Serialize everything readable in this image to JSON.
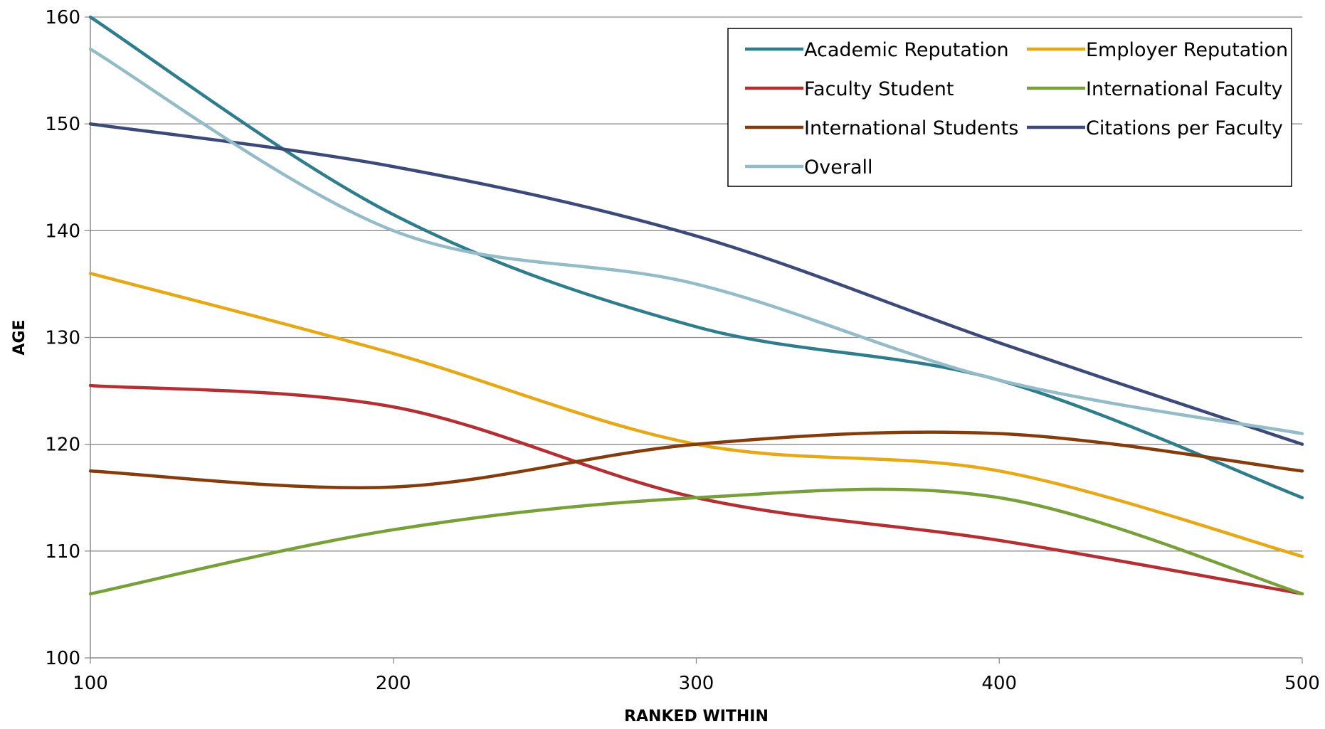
{
  "chart_data": {
    "type": "line",
    "xlabel": "RANKED WITHIN",
    "ylabel": "AGE",
    "xlim": [
      100,
      500
    ],
    "ylim": [
      100,
      160
    ],
    "x_ticks": [
      100,
      200,
      300,
      400,
      500
    ],
    "y_ticks": [
      100,
      110,
      120,
      130,
      140,
      150,
      160
    ],
    "grid": "horizontal",
    "legend_position": "top-right",
    "x": [
      100,
      200,
      300,
      400,
      500
    ],
    "series": [
      {
        "name": "Academic Reputation",
        "color": "#2E7C8C",
        "values": [
          160,
          141.5,
          131,
          126,
          115
        ]
      },
      {
        "name": "Employer Reputation",
        "color": "#E6A817",
        "values": [
          136,
          128.5,
          120,
          117.5,
          109.5
        ]
      },
      {
        "name": "Faculty Student",
        "color": "#B22F33",
        "values": [
          125.5,
          123.5,
          115,
          111,
          106
        ]
      },
      {
        "name": "International Faculty",
        "color": "#77A03A",
        "values": [
          106,
          112,
          115,
          115,
          106
        ]
      },
      {
        "name": "International Students",
        "color": "#843C0C",
        "values": [
          117.5,
          116,
          120,
          121,
          117.5
        ]
      },
      {
        "name": "Citations per Faculty",
        "color": "#3C4A7A",
        "values": [
          150,
          146,
          139.5,
          129.5,
          120
        ]
      },
      {
        "name": "Overall",
        "color": "#93BCC8",
        "values": [
          157,
          140,
          135,
          126,
          121
        ]
      }
    ]
  }
}
